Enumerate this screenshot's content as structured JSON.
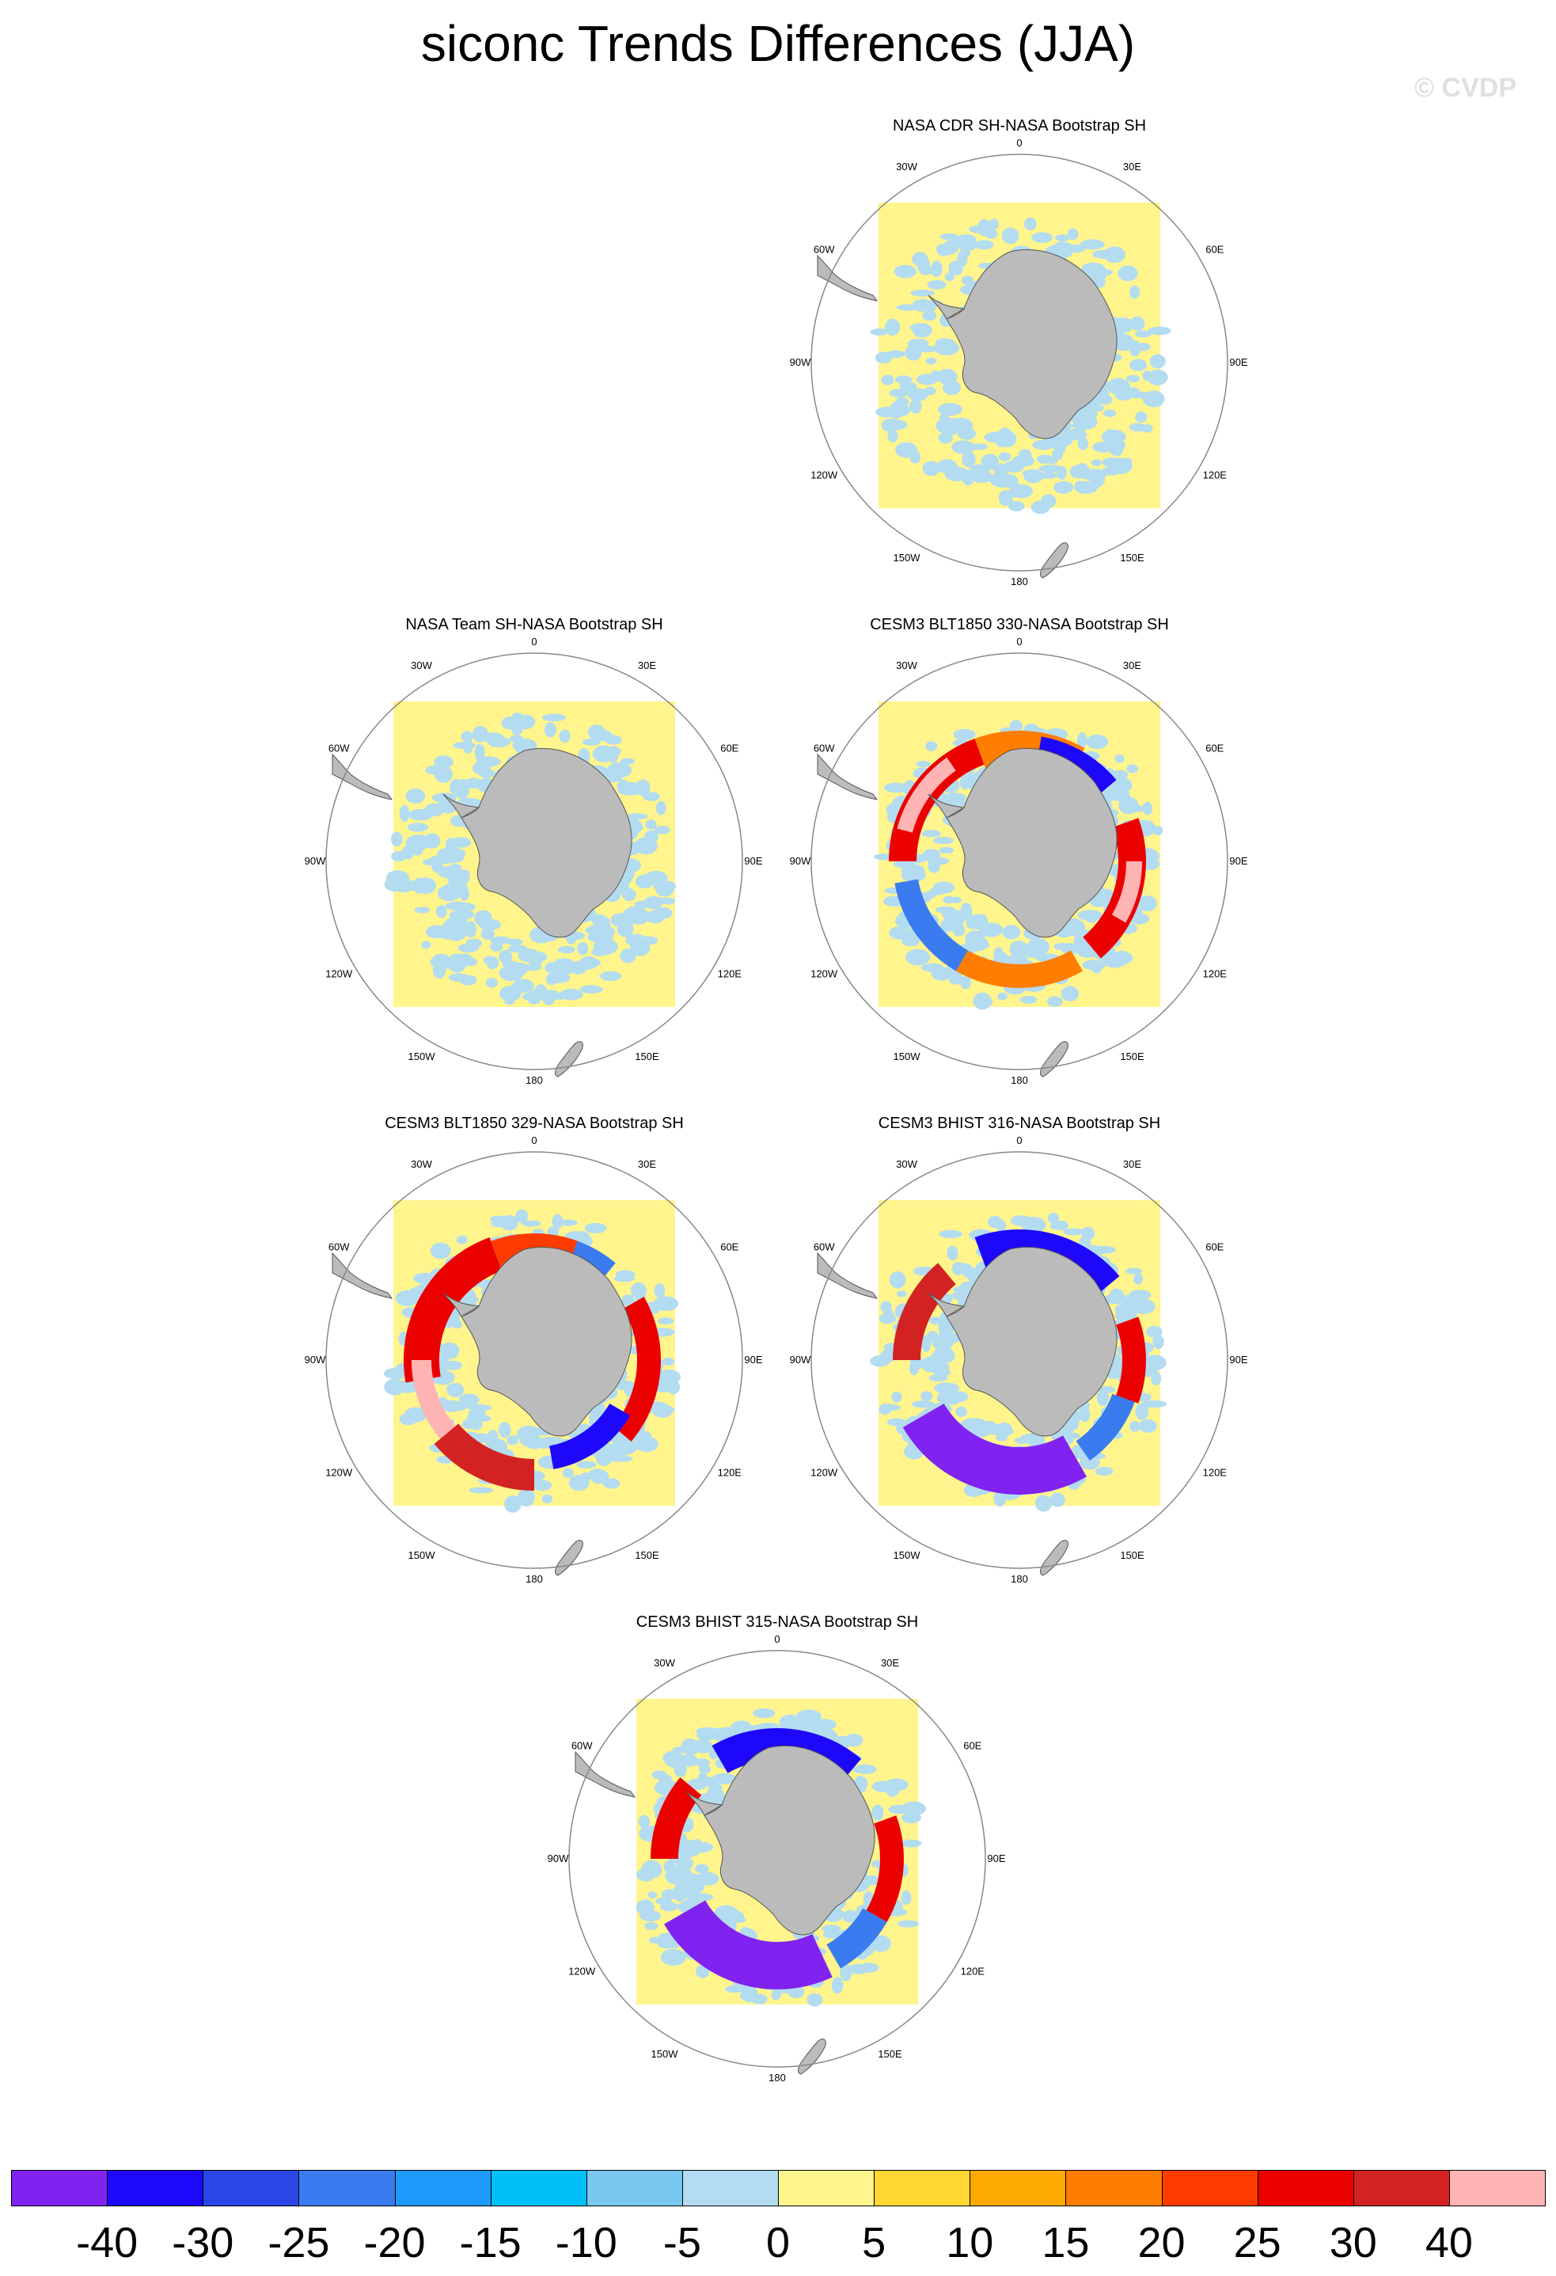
{
  "title": "siconc Trends Differences (JJA)",
  "watermark": "© CVDP",
  "lon_labels": [
    "0",
    "30E",
    "60E",
    "90E",
    "120E",
    "150E",
    "180",
    "150W",
    "120W",
    "90W",
    "60W",
    "30W"
  ],
  "panels": [
    {
      "title": "NASA CDR SH-NASA Bootstrap SH",
      "pattern": "weak"
    },
    {
      "title": "NASA Team SH-NASA Bootstrap SH",
      "pattern": "weak2"
    },
    {
      "title": "CESM3 BLT1850 330-NASA Bootstrap SH",
      "pattern": "ring_pos"
    },
    {
      "title": "CESM3 BLT1850 329-NASA Bootstrap SH",
      "pattern": "ring_pos_strong"
    },
    {
      "title": "CESM3 BHIST 316-NASA Bootstrap SH",
      "pattern": "ross_neg"
    },
    {
      "title": "CESM3 BHIST 315-NASA Bootstrap SH",
      "pattern": "ross_neg2"
    }
  ],
  "colorbar": {
    "colors": [
      "#8022f0",
      "#1e08fa",
      "#2b46e6",
      "#3a7bf0",
      "#1e9bfa",
      "#00c0fa",
      "#78c8f0",
      "#b4dcf0",
      "#fff58c",
      "#ffd732",
      "#ffaa00",
      "#ff7d00",
      "#ff3c00",
      "#eb0000",
      "#d22222",
      "#ffb4b4"
    ],
    "labels": [
      "-40",
      "-30",
      "-25",
      "-20",
      "-15",
      "-10",
      "-5",
      "0",
      "5",
      "10",
      "15",
      "20",
      "25",
      "30",
      "40"
    ]
  }
}
